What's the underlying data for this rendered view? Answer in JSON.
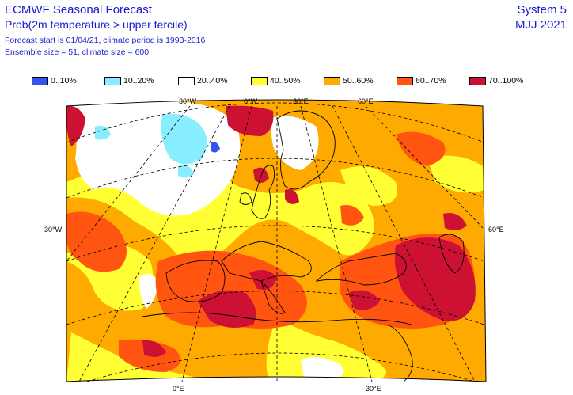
{
  "header": {
    "title": "ECMWF Seasonal Forecast",
    "subtitle": "Prob(2m temperature > upper tercile)",
    "forecast_info": "Forecast start is 01/04/21, climate period is 1993-2016",
    "ensemble_info": "Ensemble size = 51, climate size = 600",
    "system": "System 5",
    "period": "MJJ 2021"
  },
  "legend": [
    {
      "label": "0..10%",
      "color": "#3355ee"
    },
    {
      "label": "10..20%",
      "color": "#88eeff"
    },
    {
      "label": "20..40%",
      "color": "#ffffff"
    },
    {
      "label": "40..50%",
      "color": "#ffff33"
    },
    {
      "label": "50..60%",
      "color": "#ffaa00"
    },
    {
      "label": "60..70%",
      "color": "#ff5511"
    },
    {
      "label": "70..100%",
      "color": "#cc1133"
    }
  ],
  "axis_labels": {
    "top": [
      "30°W",
      "0°W",
      "30°E",
      "60°E"
    ],
    "left": "30°W",
    "right": "60°E",
    "bottom": [
      "0°E",
      "30°E"
    ]
  }
}
